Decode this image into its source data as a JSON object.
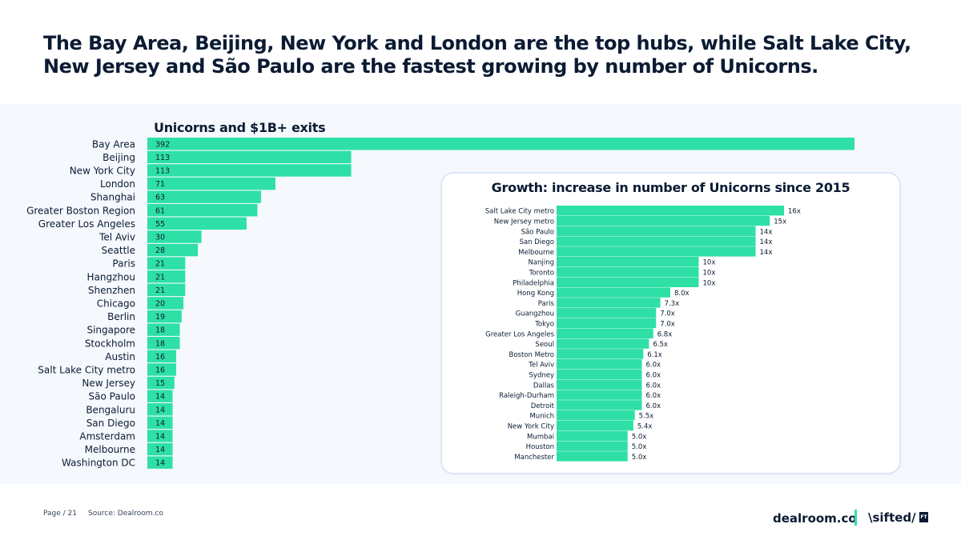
{
  "headline": "The Bay Area, Beijing, New York and London are the top hubs, while Salt Lake City, New Jersey and São Paulo are the fastest growing by number of Unicorns.",
  "colors": {
    "accent": "#2ee0a6",
    "text": "#0b1b33",
    "band": "#f5f8fd",
    "panel_border": "#dbe6f6"
  },
  "footer": {
    "page": "Page / 21",
    "source": "Source: Dealroom.co"
  },
  "logos": {
    "dealroom": "dealroom.co",
    "sifted": "\\sifted/",
    "ft": "FT"
  },
  "chart_data": [
    {
      "type": "bar",
      "orientation": "horizontal",
      "title": "Unicorns and $1B+ exits",
      "categories": [
        "Bay Area",
        "Beijing",
        "New York City",
        "London",
        "Shanghai",
        "Greater Boston Region",
        "Greater Los Angeles",
        "Tel Aviv",
        "Seattle",
        "Paris",
        "Hangzhou",
        "Shenzhen",
        "Chicago",
        "Berlin",
        "Singapore",
        "Stockholm",
        "Austin",
        "Salt Lake City metro",
        "New Jersey",
        "São Paulo",
        "Bengaluru",
        "San Diego",
        "Amsterdam",
        "Melbourne",
        "Washington DC"
      ],
      "values": [
        392,
        113,
        113,
        71,
        63,
        61,
        55,
        30,
        28,
        21,
        21,
        21,
        20,
        19,
        18,
        18,
        16,
        16,
        15,
        14,
        14,
        14,
        14,
        14,
        14
      ],
      "labels": [
        "392",
        "113",
        "113",
        "71",
        "63",
        "61",
        "55",
        "30",
        "28",
        "21",
        "21",
        "21",
        "20",
        "19",
        "18",
        "18",
        "16",
        "16",
        "15",
        "14",
        "14",
        "14",
        "14",
        "14",
        "14"
      ],
      "xlim": [
        0,
        392
      ],
      "grid": false
    },
    {
      "type": "bar",
      "orientation": "horizontal",
      "title": "Growth: increase in number of Unicorns since 2015",
      "categories": [
        "Salt Lake City metro",
        "New Jersey metro",
        "São Paulo",
        "San Diego",
        "Melbourne",
        "Nanjing",
        "Toronto",
        "Philadelphia",
        "Hong Kong",
        "Paris",
        "Guangzhou",
        "Tokyo",
        "Greater Los Angeles",
        "Seoul",
        "Boston Metro",
        "Tel Aviv",
        "Sydney",
        "Dallas",
        "Raleigh-Durham",
        "Detroit",
        "Munich",
        "New York City",
        "Mumbai",
        "Houston",
        "Manchester"
      ],
      "values": [
        16,
        15,
        14,
        14,
        14,
        10,
        10,
        10,
        8.0,
        7.3,
        7.0,
        7.0,
        6.8,
        6.5,
        6.1,
        6.0,
        6.0,
        6.0,
        6.0,
        6.0,
        5.5,
        5.4,
        5.0,
        5.0,
        5.0
      ],
      "labels": [
        "16x",
        "15x",
        "14x",
        "14x",
        "14x",
        "10x",
        "10x",
        "10x",
        "8.0x",
        "7.3x",
        "7.0x",
        "7.0x",
        "6.8x",
        "6.5x",
        "6.1x",
        "6.0x",
        "6.0x",
        "6.0x",
        "6.0x",
        "6.0x",
        "5.5x",
        "5.4x",
        "5.0x",
        "5.0x",
        "5.0x"
      ],
      "xlim": [
        0,
        16
      ],
      "grid": false
    }
  ]
}
